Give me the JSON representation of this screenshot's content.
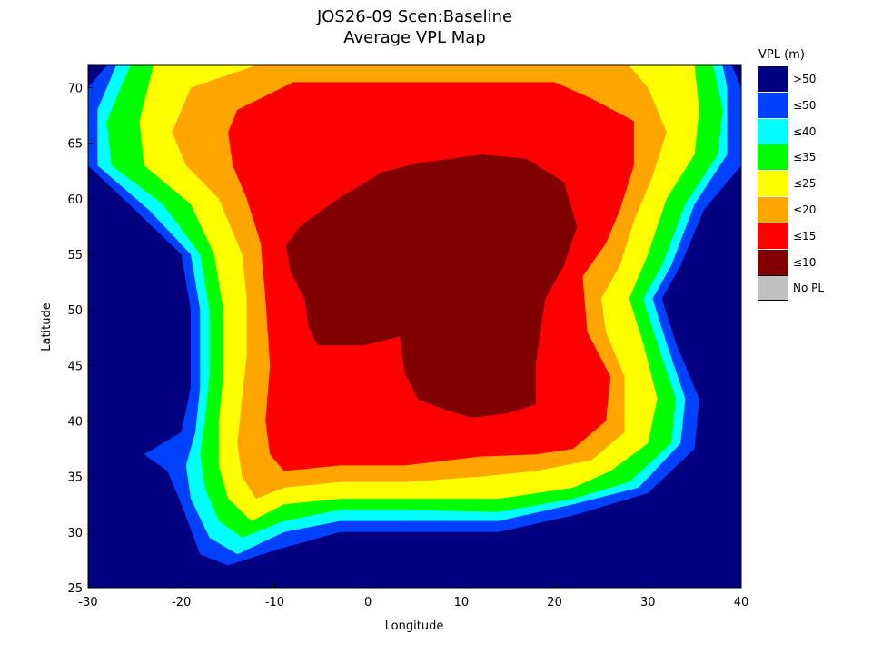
{
  "chart_data": {
    "type": "heatmap",
    "subtype": "filled-contour-map",
    "title": "JOS26-09 Scen:Baseline",
    "subtitle": "Average VPL Map",
    "xlabel": "Longitude",
    "ylabel": "Latitude",
    "xlim": [
      -30,
      40
    ],
    "ylim": [
      25,
      72
    ],
    "xticks": [
      -30,
      -20,
      -10,
      0,
      10,
      20,
      30,
      40
    ],
    "yticks": [
      25,
      30,
      35,
      40,
      45,
      50,
      55,
      60,
      65,
      70
    ],
    "grid": false,
    "background_color": "#000080",
    "legend": {
      "title": "VPL (m)",
      "placement": "right",
      "entries": [
        {
          "label": ">50",
          "color": "#000080"
        },
        {
          "label": "≤50",
          "color": "#0040ff"
        },
        {
          "label": "≤40",
          "color": "#00ffff"
        },
        {
          "label": "≤35",
          "color": "#00ff00"
        },
        {
          "label": "≤25",
          "color": "#ffff00"
        },
        {
          "label": "≤20",
          "color": "#ffa500"
        },
        {
          "label": "≤15",
          "color": "#ff0000"
        },
        {
          "label": "≤10",
          "color": "#800000"
        },
        {
          "label": "No PL",
          "color": "#c0c0c0"
        }
      ]
    },
    "regions": [
      {
        "level": "≤50",
        "color": "#0040ff",
        "polygon": [
          [
            -28,
            72
          ],
          [
            39,
            72
          ],
          [
            40,
            70
          ],
          [
            40,
            63
          ],
          [
            36,
            59
          ],
          [
            33.5,
            54
          ],
          [
            31.5,
            51
          ],
          [
            33,
            47
          ],
          [
            35.5,
            42
          ],
          [
            35,
            37.5
          ],
          [
            30,
            33.5
          ],
          [
            22,
            31.5
          ],
          [
            14,
            30
          ],
          [
            4,
            30
          ],
          [
            -3,
            30
          ],
          [
            -9.5,
            28.5
          ],
          [
            -15,
            27
          ],
          [
            -18,
            28
          ],
          [
            -20,
            32.5
          ],
          [
            -21.5,
            35.5
          ],
          [
            -24,
            37
          ],
          [
            -20,
            39
          ],
          [
            -19,
            43
          ],
          [
            -19,
            50
          ],
          [
            -20,
            55
          ],
          [
            -25,
            59
          ],
          [
            -30,
            63
          ],
          [
            -30,
            70
          ]
        ]
      },
      {
        "level": "≤40",
        "color": "#00ffff",
        "polygon": [
          [
            -27,
            72
          ],
          [
            38,
            72
          ],
          [
            38.5,
            70
          ],
          [
            38.5,
            64
          ],
          [
            35,
            59.5
          ],
          [
            32.5,
            54
          ],
          [
            30.5,
            51
          ],
          [
            32,
            47
          ],
          [
            34,
            42
          ],
          [
            33.5,
            38
          ],
          [
            29,
            34
          ],
          [
            22,
            32.5
          ],
          [
            14,
            31
          ],
          [
            4,
            31
          ],
          [
            -3,
            31
          ],
          [
            -9,
            30
          ],
          [
            -14,
            28
          ],
          [
            -17,
            29.5
          ],
          [
            -19,
            33
          ],
          [
            -19.5,
            36
          ],
          [
            -18.5,
            39
          ],
          [
            -18,
            43
          ],
          [
            -18,
            50
          ],
          [
            -19,
            55
          ],
          [
            -23.5,
            59
          ],
          [
            -29,
            63
          ],
          [
            -29,
            68
          ]
        ]
      },
      {
        "level": "≤35",
        "color": "#00ff00",
        "polygon": [
          [
            -25.5,
            72
          ],
          [
            37,
            72
          ],
          [
            38,
            68
          ],
          [
            37.5,
            64
          ],
          [
            34,
            59.5
          ],
          [
            31.5,
            54
          ],
          [
            29.5,
            51
          ],
          [
            31,
            47
          ],
          [
            33,
            42
          ],
          [
            32.5,
            38
          ],
          [
            28,
            34.5
          ],
          [
            22,
            33
          ],
          [
            14,
            31.8
          ],
          [
            4,
            32
          ],
          [
            -3,
            32
          ],
          [
            -9,
            31
          ],
          [
            -13.5,
            29.5
          ],
          [
            -16,
            31
          ],
          [
            -17.5,
            34
          ],
          [
            -18,
            37
          ],
          [
            -17.5,
            40
          ],
          [
            -17,
            44
          ],
          [
            -17,
            50
          ],
          [
            -18,
            55
          ],
          [
            -22,
            59.5
          ],
          [
            -27.5,
            63
          ],
          [
            -28,
            67
          ]
        ]
      },
      {
        "level": "≤25",
        "color": "#ffff00",
        "polygon": [
          [
            -23,
            72
          ],
          [
            35,
            72
          ],
          [
            35.5,
            68
          ],
          [
            35,
            64
          ],
          [
            32,
            60
          ],
          [
            30,
            55
          ],
          [
            28,
            51
          ],
          [
            29.5,
            47
          ],
          [
            31,
            42
          ],
          [
            30,
            38
          ],
          [
            26,
            35.5
          ],
          [
            22,
            34
          ],
          [
            14,
            33
          ],
          [
            4,
            33
          ],
          [
            -3,
            33
          ],
          [
            -9,
            32.5
          ],
          [
            -12.5,
            31
          ],
          [
            -15,
            33
          ],
          [
            -16,
            36
          ],
          [
            -16,
            40
          ],
          [
            -15.5,
            44
          ],
          [
            -15.5,
            50
          ],
          [
            -16.5,
            55
          ],
          [
            -19,
            59.5
          ],
          [
            -24,
            63
          ],
          [
            -24.5,
            67
          ]
        ]
      },
      {
        "level": "≤20",
        "color": "#ffa500",
        "polygon": [
          [
            -19,
            70
          ],
          [
            -12,
            72
          ],
          [
            28,
            72
          ],
          [
            30,
            70
          ],
          [
            32,
            66
          ],
          [
            30.5,
            62
          ],
          [
            28.5,
            58
          ],
          [
            27,
            54
          ],
          [
            25,
            51
          ],
          [
            25.5,
            48
          ],
          [
            27.5,
            44
          ],
          [
            27.5,
            39
          ],
          [
            24,
            36.5
          ],
          [
            18,
            35.5
          ],
          [
            12,
            35
          ],
          [
            4,
            34.5
          ],
          [
            -3,
            34.5
          ],
          [
            -9,
            34
          ],
          [
            -12,
            33
          ],
          [
            -13.5,
            35
          ],
          [
            -14,
            38
          ],
          [
            -13.5,
            42
          ],
          [
            -13,
            46
          ],
          [
            -13,
            51
          ],
          [
            -13.5,
            55
          ],
          [
            -16,
            60
          ],
          [
            -19.5,
            63
          ],
          [
            -21,
            66
          ]
        ]
      },
      {
        "level": "≤15",
        "color": "#ff0000",
        "polygon": [
          [
            -14,
            68
          ],
          [
            -8,
            70.5
          ],
          [
            20,
            70.5
          ],
          [
            24,
            69
          ],
          [
            28.5,
            67
          ],
          [
            28.5,
            63
          ],
          [
            27,
            59
          ],
          [
            25.5,
            56
          ],
          [
            23,
            53
          ],
          [
            23.5,
            48
          ],
          [
            26,
            44
          ],
          [
            25.5,
            40
          ],
          [
            22,
            37.5
          ],
          [
            18,
            37
          ],
          [
            12,
            36.8
          ],
          [
            4,
            36
          ],
          [
            -3,
            36
          ],
          [
            -9,
            35.5
          ],
          [
            -10.5,
            37
          ],
          [
            -11,
            40
          ],
          [
            -10.5,
            45
          ],
          [
            -11,
            51
          ],
          [
            -11.5,
            56
          ],
          [
            -13,
            60
          ],
          [
            -14.5,
            63
          ],
          [
            -15,
            66
          ]
        ]
      },
      {
        "level": "≤10",
        "color": "#800000",
        "polygon": [
          [
            5.3,
            63.2
          ],
          [
            12.2,
            64
          ],
          [
            17,
            63.6
          ],
          [
            21,
            61.5
          ],
          [
            22.4,
            57.5
          ],
          [
            21,
            54
          ],
          [
            19,
            51
          ],
          [
            18,
            45.2
          ],
          [
            18,
            41.5
          ],
          [
            15,
            40.7
          ],
          [
            11.2,
            40.3
          ],
          [
            8.3,
            41
          ],
          [
            5.4,
            41.9
          ],
          [
            3.9,
            44.4
          ],
          [
            3.4,
            47.6
          ],
          [
            -0.5,
            46.8
          ],
          [
            -5.4,
            46.8
          ],
          [
            -6.4,
            48.5
          ],
          [
            -6.8,
            51
          ],
          [
            -8.3,
            53.4
          ],
          [
            -8.8,
            55.8
          ],
          [
            -7.3,
            57.5
          ],
          [
            -3.4,
            59.9
          ],
          [
            1.5,
            62.4
          ]
        ]
      }
    ]
  }
}
